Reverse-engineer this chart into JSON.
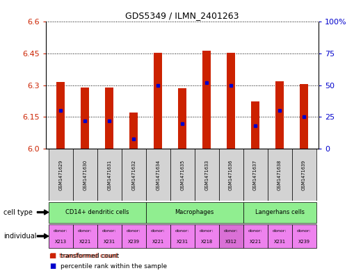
{
  "title": "GDS5349 / ILMN_2401263",
  "samples": [
    "GSM1471629",
    "GSM1471630",
    "GSM1471631",
    "GSM1471632",
    "GSM1471634",
    "GSM1471635",
    "GSM1471633",
    "GSM1471636",
    "GSM1471637",
    "GSM1471638",
    "GSM1471639"
  ],
  "transformed_counts": [
    6.315,
    6.29,
    6.29,
    6.17,
    6.455,
    6.285,
    6.465,
    6.455,
    6.225,
    6.32,
    6.305
  ],
  "percentile_ranks": [
    30,
    22,
    22,
    8,
    50,
    20,
    52,
    50,
    18,
    30,
    25
  ],
  "y_min": 6.0,
  "y_max": 6.6,
  "y_ticks": [
    6.0,
    6.15,
    6.3,
    6.45,
    6.6
  ],
  "y_right_ticks": [
    0,
    25,
    50,
    75,
    100
  ],
  "cell_groups": [
    {
      "label": "CD14+ dendritic cells",
      "start": 0,
      "end": 3
    },
    {
      "label": "Macrophages",
      "start": 4,
      "end": 7
    },
    {
      "label": "Langerhans cells",
      "start": 8,
      "end": 10
    }
  ],
  "individual_groups": [
    {
      "donor": "X213",
      "color": "#ee82ee"
    },
    {
      "donor": "X221",
      "color": "#ee82ee"
    },
    {
      "donor": "X231",
      "color": "#ee82ee"
    },
    {
      "donor": "X239",
      "color": "#ee82ee"
    },
    {
      "donor": "X221",
      "color": "#ee82ee"
    },
    {
      "donor": "X231",
      "color": "#ee82ee"
    },
    {
      "donor": "X218",
      "color": "#ee82ee"
    },
    {
      "donor": "X312",
      "color": "#da70d6"
    },
    {
      "donor": "X221",
      "color": "#ee82ee"
    },
    {
      "donor": "X231",
      "color": "#ee82ee"
    },
    {
      "donor": "X239",
      "color": "#ee82ee"
    }
  ],
  "bar_color": "#cc2200",
  "dot_color": "#0000cc",
  "bar_width": 0.35,
  "left_label_color": "#cc2200",
  "right_label_color": "#0000cc",
  "cell_type_color": "#90ee90",
  "sample_bg_color": "#d3d3d3"
}
